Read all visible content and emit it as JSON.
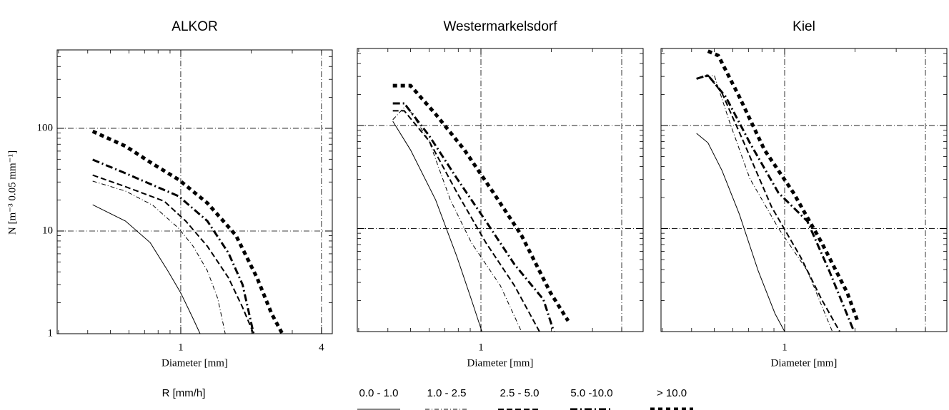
{
  "chart_data": [
    {
      "type": "line",
      "title": "ALKOR",
      "xlabel": "Diameter [mm]",
      "ylabel": "N [m⁻³ 0.05 mm⁻¹]",
      "legend_title": "R [mm/h]",
      "log_x": true,
      "log_y": true,
      "xlim": [
        0.296,
        4.45
      ],
      "ylim": [
        1,
        580
      ],
      "xticks": [
        1,
        4
      ],
      "yticks": [
        1,
        10,
        100
      ],
      "grid_x": [
        1,
        4
      ],
      "grid_y": [
        10,
        100
      ],
      "show_ytick_labels": true,
      "series": [
        {
          "name": "0.0 -  1.0",
          "color": "#000000",
          "style": "solid",
          "width": 1,
          "x": [
            0.42,
            0.58,
            0.74,
            0.88,
            1.0,
            1.13,
            1.21
          ],
          "values": [
            18,
            12.5,
            7.7,
            4.1,
            2.5,
            1.4,
            1
          ]
        },
        {
          "name": "1.0 -  2.5",
          "color": "#000000",
          "style": "dashdot",
          "width": 1,
          "x": [
            0.42,
            0.58,
            0.76,
            0.98,
            1.13,
            1.3,
            1.44,
            1.55
          ],
          "values": [
            30.6,
            24.5,
            17.8,
            10.6,
            7.1,
            4.1,
            2.2,
            1
          ]
        },
        {
          "name": "2.5 -  5.0",
          "color": "#000000",
          "style": "dashed",
          "width": 2,
          "x": [
            0.42,
            0.58,
            0.85,
            1.05,
            1.3,
            1.6,
            1.84,
            2.05
          ],
          "values": [
            35,
            27,
            19.5,
            12.5,
            7.1,
            3.5,
            1.8,
            1
          ]
        },
        {
          "name": "5.0 -10.0",
          "color": "#000000",
          "style": "dashdot",
          "width": 3,
          "x": [
            0.42,
            0.58,
            0.74,
            0.98,
            1.3,
            1.6,
            1.84,
            2.05
          ],
          "values": [
            49.5,
            36.5,
            28.7,
            21.8,
            12.5,
            6.1,
            3.0,
            1
          ]
        },
        {
          "name": "> 10.0",
          "color": "#000000",
          "style": "dotted",
          "width": 5,
          "x": [
            0.42,
            0.58,
            0.76,
            0.98,
            1.3,
            1.72,
            2.12,
            2.45,
            2.72
          ],
          "values": [
            93.5,
            67,
            45,
            31.6,
            18.7,
            9.1,
            3.5,
            1.56,
            1
          ]
        }
      ]
    },
    {
      "type": "line",
      "title": "Westermarkelsdorf",
      "xlabel": "Diameter [mm]",
      "log_x": true,
      "log_y": true,
      "xlim": [
        0.296,
        4.94
      ],
      "ylim": [
        1,
        560
      ],
      "xticks": [
        1
      ],
      "yticks": [
        1,
        10,
        100
      ],
      "grid_x": [
        1,
        4
      ],
      "grid_y": [
        10,
        100
      ],
      "show_ytick_labels": false,
      "series": [
        {
          "name": "0.0 -  1.0",
          "color": "#000000",
          "style": "solid",
          "width": 1,
          "x": [
            0.42,
            0.5,
            0.64,
            0.79,
            0.91,
            1.01
          ],
          "values": [
            110,
            58,
            19,
            5.3,
            2.05,
            1
          ]
        },
        {
          "name": "1.0 -  2.5",
          "color": "#000000",
          "style": "dashdot",
          "width": 1,
          "x": [
            0.42,
            0.48,
            0.6,
            0.74,
            0.91,
            1.21,
            1.49
          ],
          "values": [
            114,
            158,
            71,
            19,
            7.3,
            2.8,
            1
          ]
        },
        {
          "name": "2.5 -  5.0",
          "color": "#000000",
          "style": "dashed",
          "width": 2,
          "x": [
            0.42,
            0.47,
            0.6,
            0.79,
            1.05,
            1.39,
            1.78
          ],
          "values": [
            139,
            139,
            71,
            22.3,
            7.3,
            2.8,
            1
          ]
        },
        {
          "name": "5.0 -10.0",
          "color": "#000000",
          "style": "dashdot",
          "width": 3,
          "x": [
            0.42,
            0.47,
            0.6,
            0.79,
            1.05,
            1.39,
            1.85,
            2.05
          ],
          "values": [
            164,
            164,
            80,
            30.6,
            11.8,
            4.5,
            2.05,
            1
          ]
        },
        {
          "name": "> 10.0",
          "color": "#000000",
          "style": "dotted",
          "width": 5,
          "x": [
            0.42,
            0.5,
            0.64,
            0.85,
            1.13,
            1.49,
            1.98,
            2.36
          ],
          "values": [
            244,
            244,
            129,
            58,
            22.3,
            8.6,
            2.4,
            1.27
          ]
        }
      ]
    },
    {
      "type": "line",
      "title": "Kiel",
      "xlabel": "Diameter [mm]",
      "log_x": true,
      "log_y": true,
      "xlim": [
        0.296,
        4.94
      ],
      "ylim": [
        1,
        560
      ],
      "xticks": [
        1
      ],
      "yticks": [
        1,
        10,
        100
      ],
      "grid_x": [
        1,
        4
      ],
      "grid_y": [
        10,
        100
      ],
      "show_ytick_labels": false,
      "series": [
        {
          "name": "0.0 -  1.0",
          "color": "#000000",
          "style": "solid",
          "width": 1,
          "x": [
            0.42,
            0.47,
            0.54,
            0.64,
            0.77,
            0.91,
            1.0
          ],
          "values": [
            84,
            68,
            36.5,
            13.8,
            3.9,
            1.49,
            1
          ]
        },
        {
          "name": "1.0 -  2.5",
          "color": "#000000",
          "style": "dashdot",
          "width": 1,
          "x": [
            0.42,
            0.5,
            0.58,
            0.71,
            0.94,
            1.25,
            1.6
          ],
          "values": [
            285,
            308,
            110,
            30.6,
            10.1,
            3.9,
            1
          ]
        },
        {
          "name": "2.5 -  5.0",
          "color": "#000000",
          "style": "dashed",
          "width": 2,
          "x": [
            0.42,
            0.47,
            0.54,
            0.67,
            0.88,
            1.17,
            1.44,
            1.72
          ],
          "values": [
            285,
            308,
            206,
            68,
            16.2,
            5.3,
            2.05,
            1
          ]
        },
        {
          "name": "5.0 -10.0",
          "color": "#000000",
          "style": "dashdot",
          "width": 3,
          "x": [
            0.42,
            0.47,
            0.56,
            0.71,
            0.94,
            1.25,
            1.55,
            1.98
          ],
          "values": [
            285,
            308,
            190,
            68,
            22.3,
            11.8,
            3.9,
            1
          ]
        },
        {
          "name": "> 10.0",
          "color": "#000000",
          "style": "dotted",
          "width": 5,
          "x": [
            0.47,
            0.52,
            0.64,
            0.82,
            1.09,
            1.44,
            1.85,
            2.05
          ],
          "values": [
            528,
            478,
            190,
            58,
            22.3,
            7.3,
            2.4,
            1.27
          ]
        }
      ]
    }
  ]
}
